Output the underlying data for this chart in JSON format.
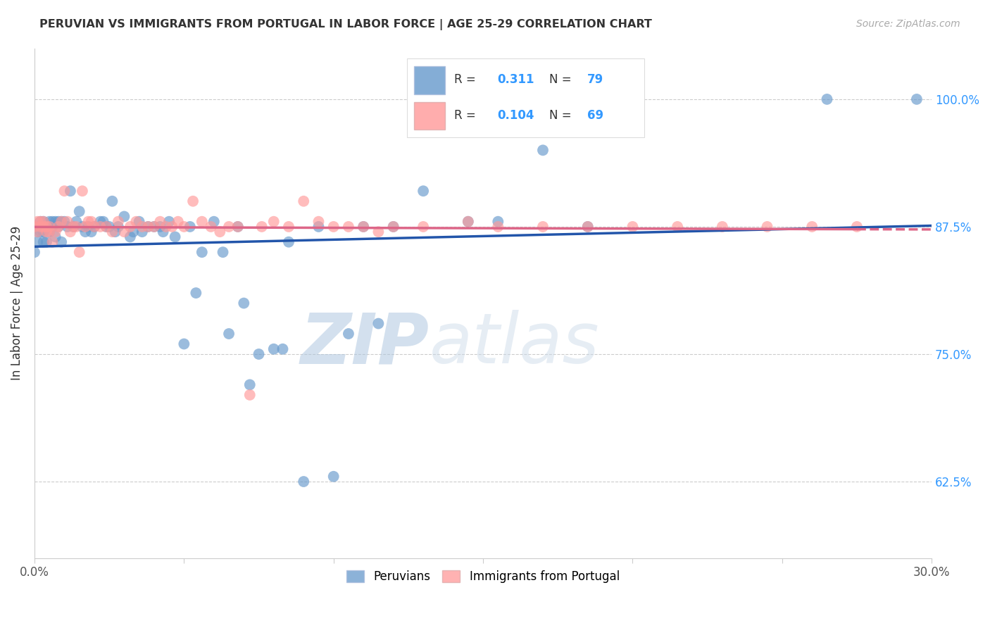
{
  "title": "PERUVIAN VS IMMIGRANTS FROM PORTUGAL IN LABOR FORCE | AGE 25-29 CORRELATION CHART",
  "source": "Source: ZipAtlas.com",
  "ylabel": "In Labor Force | Age 25-29",
  "xlim": [
    0.0,
    0.3
  ],
  "ylim": [
    0.55,
    1.05
  ],
  "yticks": [
    0.625,
    0.75,
    0.875,
    1.0
  ],
  "ytick_labels": [
    "62.5%",
    "75.0%",
    "87.5%",
    "100.0%"
  ],
  "xticks": [
    0.0,
    0.05,
    0.1,
    0.15,
    0.2,
    0.25,
    0.3
  ],
  "xtick_labels": [
    "0.0%",
    "",
    "",
    "",
    "",
    "",
    "30.0%"
  ],
  "legend_blue_R": "0.311",
  "legend_blue_N": "79",
  "legend_pink_R": "0.104",
  "legend_pink_N": "69",
  "blue_color": "#6699CC",
  "pink_color": "#FF9999",
  "blue_line_color": "#2255AA",
  "pink_line_color": "#DD6688",
  "watermark_zip": "ZIP",
  "watermark_atlas": "atlas",
  "blue_points_x": [
    0.0,
    0.001,
    0.001,
    0.002,
    0.002,
    0.002,
    0.003,
    0.003,
    0.003,
    0.003,
    0.004,
    0.004,
    0.005,
    0.005,
    0.006,
    0.006,
    0.007,
    0.007,
    0.008,
    0.008,
    0.009,
    0.009,
    0.01,
    0.011,
    0.012,
    0.013,
    0.014,
    0.015,
    0.016,
    0.017,
    0.018,
    0.019,
    0.02,
    0.022,
    0.023,
    0.024,
    0.025,
    0.026,
    0.027,
    0.028,
    0.03,
    0.032,
    0.033,
    0.035,
    0.036,
    0.038,
    0.04,
    0.042,
    0.043,
    0.045,
    0.047,
    0.05,
    0.052,
    0.054,
    0.056,
    0.06,
    0.063,
    0.065,
    0.068,
    0.07,
    0.072,
    0.075,
    0.08,
    0.083,
    0.085,
    0.09,
    0.095,
    0.1,
    0.105,
    0.11,
    0.115,
    0.12,
    0.13,
    0.145,
    0.155,
    0.17,
    0.185,
    0.265,
    0.295
  ],
  "blue_points_y": [
    0.85,
    0.86,
    0.87,
    0.875,
    0.88,
    0.87,
    0.88,
    0.875,
    0.87,
    0.86,
    0.875,
    0.86,
    0.87,
    0.88,
    0.875,
    0.88,
    0.88,
    0.865,
    0.875,
    0.88,
    0.88,
    0.86,
    0.88,
    0.875,
    0.91,
    0.875,
    0.88,
    0.89,
    0.875,
    0.87,
    0.875,
    0.87,
    0.875,
    0.88,
    0.88,
    0.875,
    0.875,
    0.9,
    0.87,
    0.875,
    0.885,
    0.865,
    0.87,
    0.88,
    0.87,
    0.875,
    0.875,
    0.875,
    0.87,
    0.88,
    0.865,
    0.76,
    0.875,
    0.81,
    0.85,
    0.88,
    0.85,
    0.77,
    0.875,
    0.8,
    0.72,
    0.75,
    0.755,
    0.755,
    0.86,
    0.625,
    0.875,
    0.63,
    0.77,
    0.875,
    0.78,
    0.875,
    0.91,
    0.88,
    0.88,
    0.95,
    0.875,
    1.0,
    1.0
  ],
  "pink_points_x": [
    0.0,
    0.001,
    0.001,
    0.002,
    0.002,
    0.003,
    0.003,
    0.004,
    0.004,
    0.005,
    0.005,
    0.006,
    0.007,
    0.008,
    0.009,
    0.01,
    0.011,
    0.012,
    0.013,
    0.014,
    0.015,
    0.016,
    0.017,
    0.018,
    0.019,
    0.02,
    0.022,
    0.024,
    0.026,
    0.028,
    0.03,
    0.032,
    0.034,
    0.036,
    0.038,
    0.04,
    0.042,
    0.044,
    0.046,
    0.048,
    0.05,
    0.053,
    0.056,
    0.059,
    0.062,
    0.065,
    0.068,
    0.072,
    0.076,
    0.08,
    0.085,
    0.09,
    0.095,
    0.1,
    0.105,
    0.11,
    0.115,
    0.12,
    0.13,
    0.145,
    0.155,
    0.17,
    0.185,
    0.2,
    0.215,
    0.23,
    0.245,
    0.26,
    0.275
  ],
  "pink_points_y": [
    0.875,
    0.87,
    0.88,
    0.875,
    0.88,
    0.875,
    0.88,
    0.875,
    0.87,
    0.875,
    0.87,
    0.86,
    0.87,
    0.875,
    0.88,
    0.91,
    0.88,
    0.87,
    0.875,
    0.875,
    0.85,
    0.91,
    0.875,
    0.88,
    0.88,
    0.875,
    0.875,
    0.875,
    0.87,
    0.88,
    0.87,
    0.875,
    0.88,
    0.875,
    0.875,
    0.875,
    0.88,
    0.875,
    0.875,
    0.88,
    0.875,
    0.9,
    0.88,
    0.875,
    0.87,
    0.875,
    0.875,
    0.71,
    0.875,
    0.88,
    0.875,
    0.9,
    0.88,
    0.875,
    0.875,
    0.875,
    0.87,
    0.875,
    0.875,
    0.88,
    0.875,
    0.875,
    0.875,
    0.875,
    0.875,
    0.875,
    0.875,
    0.875,
    0.875
  ]
}
